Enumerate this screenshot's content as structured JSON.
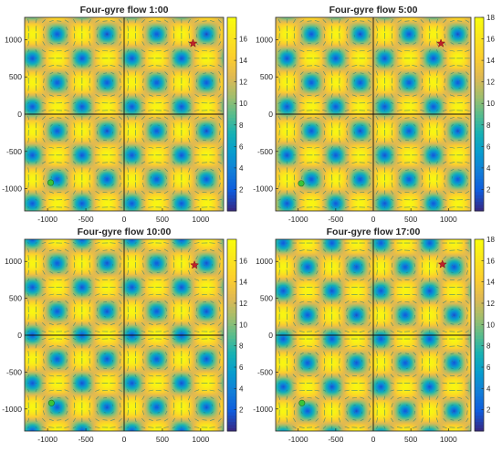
{
  "chart_data": [
    {
      "type": "heatmap",
      "title": "Four-gyre flow 1:00",
      "xlim": [
        -1300,
        1300
      ],
      "ylim": [
        -1300,
        1300
      ],
      "xticks": [
        -1000,
        -500,
        0,
        500,
        1000
      ],
      "yticks": [
        -1000,
        -500,
        0,
        500,
        1000
      ],
      "gyre_centers": [
        {
          "x": -1200,
          "y": 100
        },
        {
          "x": -500,
          "y": 800
        },
        {
          "x": 800,
          "y": 800
        },
        {
          "x": 100,
          "y": 100
        },
        {
          "x": -500,
          "y": -500
        },
        {
          "x": 800,
          "y": -500
        },
        {
          "x": -1200,
          "y": -1200
        },
        {
          "x": 100,
          "y": -1200
        }
      ],
      "colorbar": {
        "min": 0,
        "max": 18,
        "ticks": [
          2,
          4,
          6,
          8,
          10,
          12,
          14,
          16
        ],
        "colormap": "parula"
      },
      "markers": [
        {
          "kind": "star",
          "color": "#c0202a",
          "x": 900,
          "y": 950
        },
        {
          "kind": "circle",
          "color": "#39c43a",
          "x": -960,
          "y": -920
        }
      ]
    },
    {
      "type": "heatmap",
      "title": "Four-gyre flow 5:00",
      "xlim": [
        -1300,
        1300
      ],
      "ylim": [
        -1300,
        1300
      ],
      "xticks": [
        -1000,
        -500,
        0,
        500,
        1000
      ],
      "yticks": [
        -1000,
        -500,
        0,
        500,
        1000
      ],
      "gyre_centers": [
        {
          "x": -500,
          "y": 750
        },
        {
          "x": 850,
          "y": 700
        },
        {
          "x": 150,
          "y": 20
        },
        {
          "x": -1150,
          "y": 20
        },
        {
          "x": -500,
          "y": -650
        },
        {
          "x": 850,
          "y": -650
        },
        {
          "x": 150,
          "y": -1300
        }
      ],
      "colorbar": {
        "min": 0,
        "max": 18,
        "ticks": [
          2,
          4,
          6,
          8,
          10,
          12,
          14,
          16,
          18
        ],
        "colormap": "parula"
      },
      "markers": [
        {
          "kind": "star",
          "color": "#c0202a",
          "x": 900,
          "y": 950
        },
        {
          "kind": "circle",
          "color": "#39c43a",
          "x": -960,
          "y": -930
        }
      ]
    },
    {
      "type": "heatmap",
      "title": "Four-gyre flow 10:00",
      "xlim": [
        -1300,
        1300
      ],
      "ylim": [
        -1300,
        1300
      ],
      "xticks": [
        -1000,
        -500,
        0,
        500,
        1000
      ],
      "yticks": [
        -1000,
        -500,
        0,
        500,
        1000
      ],
      "gyre_centers": [
        {
          "x": -1200,
          "y": 1300
        },
        {
          "x": 100,
          "y": 1300
        },
        {
          "x": -550,
          "y": 600
        },
        {
          "x": 750,
          "y": 600
        },
        {
          "x": -1200,
          "y": 0
        },
        {
          "x": 100,
          "y": 0
        },
        {
          "x": -550,
          "y": -650
        },
        {
          "x": 750,
          "y": -650
        }
      ],
      "colorbar": {
        "min": 0,
        "max": 18,
        "ticks": [
          2,
          4,
          6,
          8,
          10,
          12,
          14,
          16
        ],
        "colormap": "parula"
      },
      "markers": [
        {
          "kind": "star",
          "color": "#c0202a",
          "x": 920,
          "y": 950
        },
        {
          "kind": "circle",
          "color": "#39c43a",
          "x": -950,
          "y": -920
        }
      ]
    },
    {
      "type": "heatmap",
      "title": "Four-gyre flow 17:00",
      "xlim": [
        -1300,
        1300
      ],
      "ylim": [
        -1300,
        1300
      ],
      "xticks": [
        -1000,
        -500,
        0,
        500,
        1000
      ],
      "yticks": [
        -1000,
        -500,
        0,
        500,
        1000
      ],
      "gyre_centers": [
        {
          "x": -1200,
          "y": 1250
        },
        {
          "x": 100,
          "y": 1250
        },
        {
          "x": -550,
          "y": 700
        },
        {
          "x": 800,
          "y": 700
        },
        {
          "x": -1200,
          "y": 0
        },
        {
          "x": 100,
          "y": 0
        },
        {
          "x": -550,
          "y": -650
        },
        {
          "x": 800,
          "y": -650
        }
      ],
      "colorbar": {
        "min": 0,
        "max": 18,
        "ticks": [
          2,
          4,
          6,
          8,
          10,
          12,
          14,
          16,
          18
        ],
        "colormap": "parula"
      },
      "markers": [
        {
          "kind": "star",
          "color": "#c0202a",
          "x": 920,
          "y": 960
        },
        {
          "kind": "circle",
          "color": "#39c43a",
          "x": -950,
          "y": -920
        }
      ]
    }
  ]
}
